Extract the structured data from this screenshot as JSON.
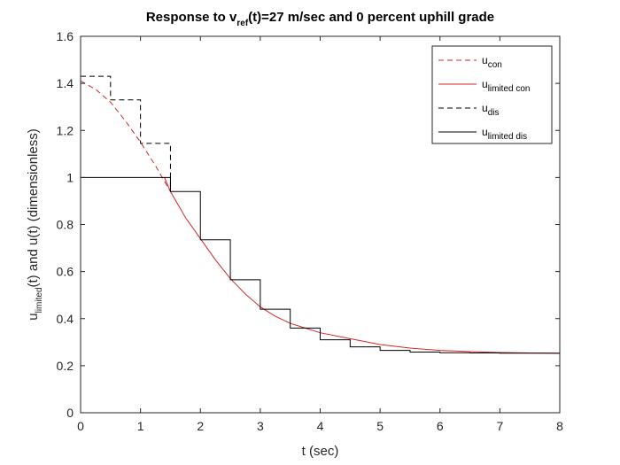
{
  "chart_data": {
    "type": "line",
    "title": {
      "main": "Response to v",
      "sub": "ref",
      "rest": "(t)=27 m/sec and  0 percent uphill grade"
    },
    "xlabel": "t (sec)",
    "ylabel": {
      "pre": "u",
      "sub": "limited",
      "post": "(t) and u(t) (dimensionless)"
    },
    "xlim": [
      0,
      8
    ],
    "ylim": [
      0,
      1.6
    ],
    "xticks": [
      0,
      1,
      2,
      3,
      4,
      5,
      6,
      7,
      8
    ],
    "yticks": [
      0,
      0.2,
      0.4,
      0.6,
      0.8,
      1,
      1.2,
      1.4,
      1.6
    ],
    "xtick_labels": [
      "0",
      "1",
      "2",
      "3",
      "4",
      "5",
      "6",
      "7",
      "8"
    ],
    "ytick_labels": [
      "0",
      "0.2",
      "0.4",
      "0.6",
      "0.8",
      "1",
      "1.2",
      "1.4",
      "1.6"
    ],
    "grid": false,
    "legend_position": "top-right",
    "colors": {
      "red": "#d62728",
      "black": "#000000",
      "axis": "#262626"
    },
    "series": [
      {
        "name": "u",
        "name_sub": "con",
        "style": "dashed",
        "color": "#d62728",
        "x": [
          0,
          0.25,
          0.5,
          0.75,
          1.0,
          1.25,
          1.5
        ],
        "y": [
          1.41,
          1.375,
          1.32,
          1.24,
          1.15,
          1.05,
          0.94
        ]
      },
      {
        "name": "u",
        "name_sub": "limited con",
        "style": "solid",
        "color": "#d62728",
        "x": [
          1.4,
          1.5,
          1.75,
          2.0,
          2.25,
          2.5,
          2.75,
          3.0,
          3.25,
          3.5,
          3.75,
          4.0,
          4.5,
          5.0,
          5.5,
          6.0,
          6.5,
          7.0,
          7.5,
          8.0
        ],
        "y": [
          1.0,
          0.94,
          0.83,
          0.74,
          0.65,
          0.57,
          0.505,
          0.45,
          0.41,
          0.38,
          0.36,
          0.34,
          0.315,
          0.29,
          0.275,
          0.265,
          0.26,
          0.256,
          0.254,
          0.252
        ]
      },
      {
        "name": "u",
        "name_sub": "dis",
        "style": "dashed-step",
        "color": "#000000",
        "x": [
          0,
          0.5,
          1.0,
          1.5
        ],
        "y": [
          1.43,
          1.33,
          1.145,
          0.94
        ]
      },
      {
        "name": "u",
        "name_sub": "limited dis",
        "style": "solid-step",
        "color": "#000000",
        "x": [
          0,
          1.5,
          2.0,
          2.5,
          3.0,
          3.5,
          4.0,
          4.5,
          5.0,
          5.5,
          6.0,
          6.5,
          7.0,
          7.5,
          8.0
        ],
        "y": [
          1.0,
          0.94,
          0.735,
          0.565,
          0.44,
          0.36,
          0.31,
          0.28,
          0.265,
          0.258,
          0.255,
          0.254,
          0.253,
          0.253,
          0.253
        ]
      }
    ]
  }
}
